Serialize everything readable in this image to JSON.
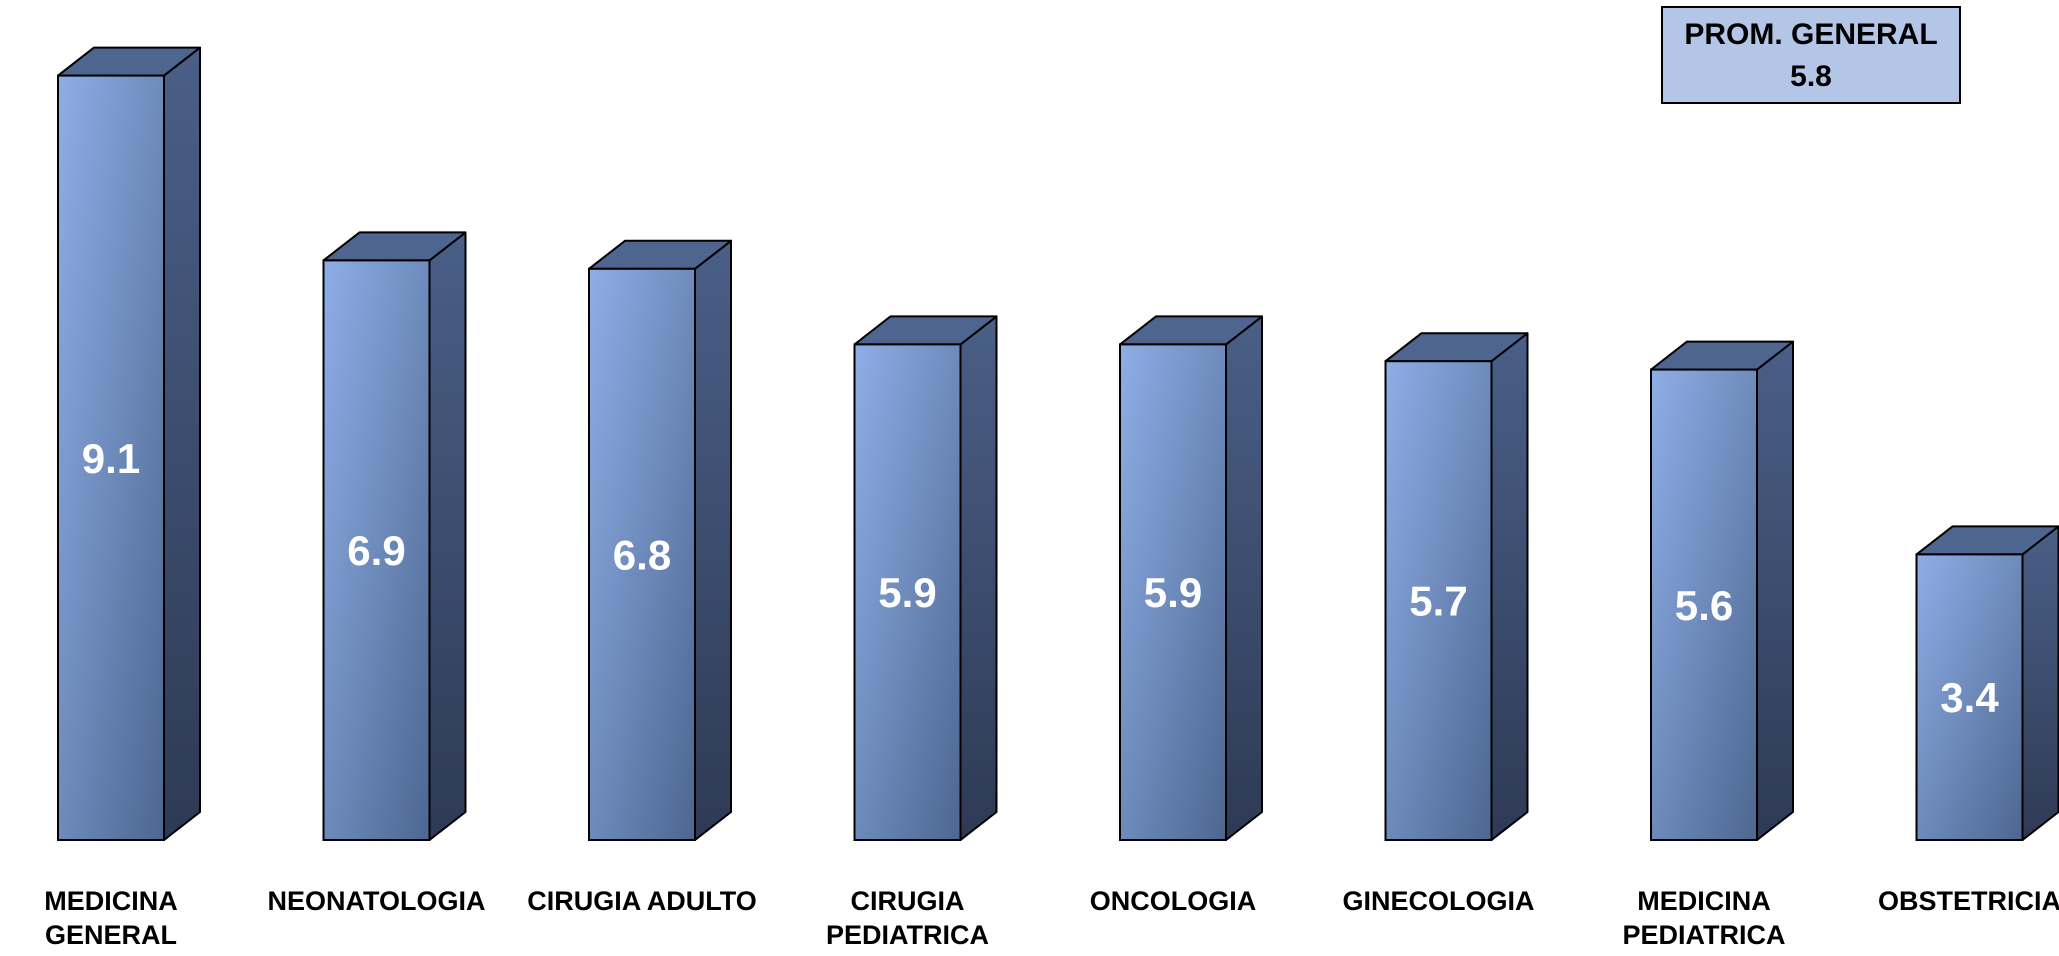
{
  "chart_data": {
    "type": "bar",
    "categories": [
      "MEDICINA GENERAL",
      "NEONATOLOGIA",
      "CIRUGIA ADULTO",
      "CIRUGIA PEDIATRICA",
      "ONCOLOGIA",
      "GINECOLOGIA",
      "MEDICINA PEDIATRICA",
      "OBSTETRICIA"
    ],
    "values": [
      9.1,
      6.9,
      6.8,
      5.9,
      5.9,
      5.7,
      5.6,
      3.4
    ],
    "value_labels": [
      "9.1",
      "6.9",
      "6.8",
      "5.9",
      "5.9",
      "5.7",
      "5.6",
      "3.4"
    ],
    "style": "3d-column",
    "grid": false,
    "colors": {
      "bar_front_light": "#8eaee6",
      "bar_front_dark": "#4d6791",
      "bar_side": "#33415f",
      "bar_top": "#4e6590",
      "legend_fill": "#b4c6e7"
    }
  },
  "summary_box": {
    "title": "PROM. GENERAL",
    "value": "5.8"
  }
}
